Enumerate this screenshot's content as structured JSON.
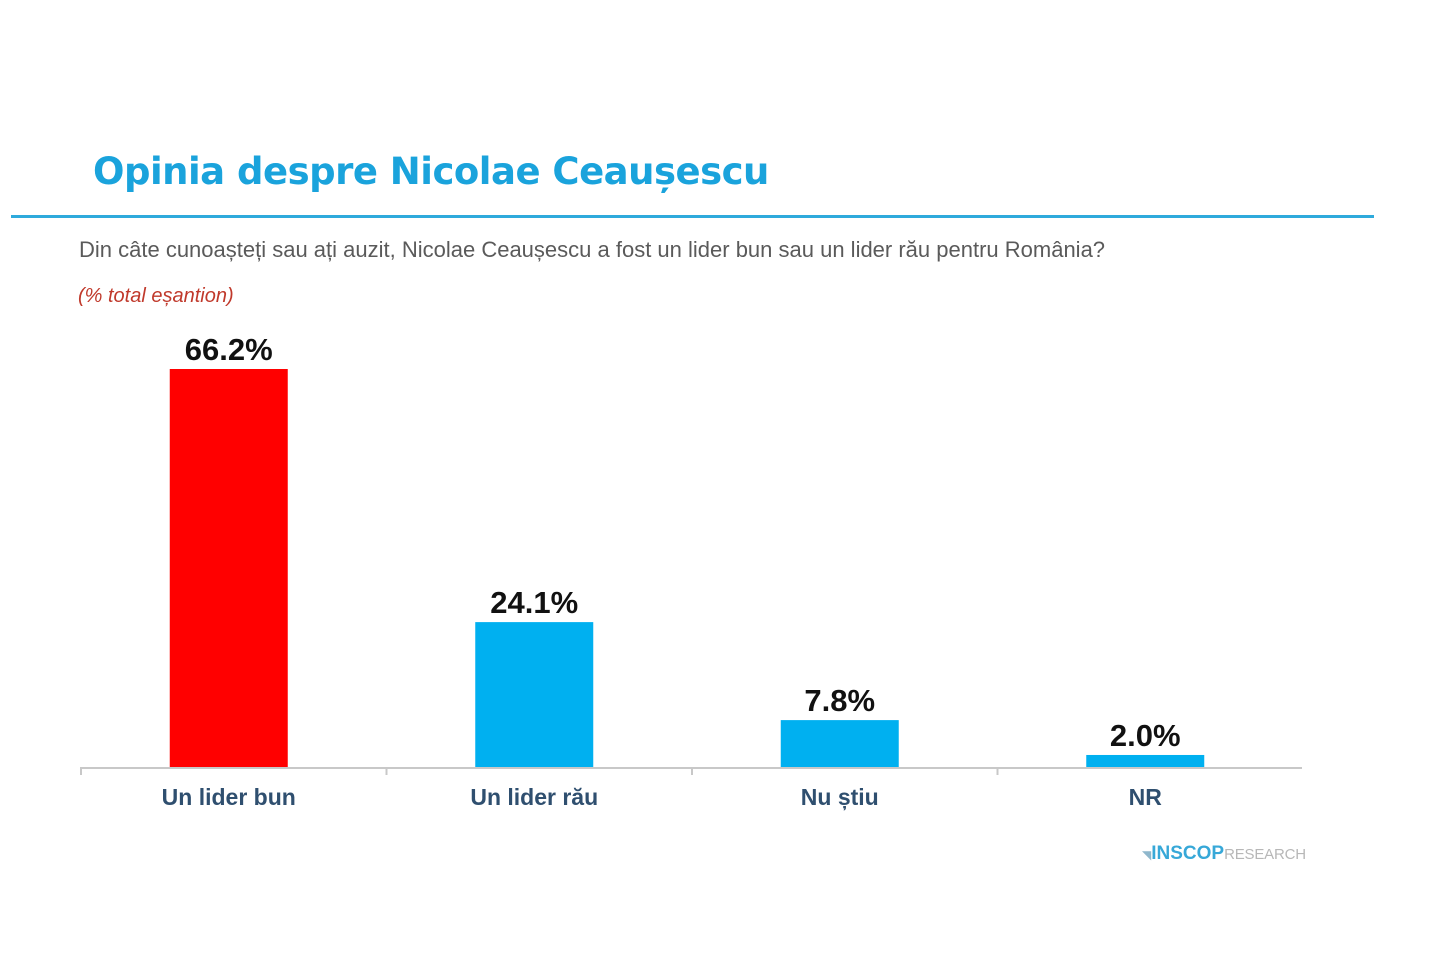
{
  "header": {
    "title": "Opinia despre Nicolae Ceaușescu",
    "question": "Din câte cunoașteți sau ați auzit, Nicolae Ceaușescu a fost un lider bun sau un lider rău pentru România?",
    "sample_note": "(% total eșantion)"
  },
  "chart_data": {
    "type": "bar",
    "title": "",
    "xlabel": "",
    "ylabel": "",
    "categories": [
      "Un lider bun",
      "Un lider rău",
      "Nu știu",
      "NR"
    ],
    "values": [
      66.2,
      24.1,
      7.8,
      2.0
    ],
    "data_labels": [
      "66.2%",
      "24.1%",
      "7.8%",
      "2.0%"
    ],
    "colors": [
      "#ff0000",
      "#00b0f0",
      "#00b0f0",
      "#00b0f0"
    ],
    "ylim": [
      0,
      66.2
    ],
    "grid": false,
    "legend": "none"
  },
  "logo": {
    "mark": "◥",
    "strong": "INSCOP",
    "light": "RESEARCH"
  },
  "colors": {
    "title": "#1aa3dc",
    "rule": "#2eaadc",
    "question": "#5a5a5a",
    "note": "#c0392b",
    "axis": "#c8c8c8",
    "category_label": "#2f4f6f",
    "value_label": "#111111"
  }
}
